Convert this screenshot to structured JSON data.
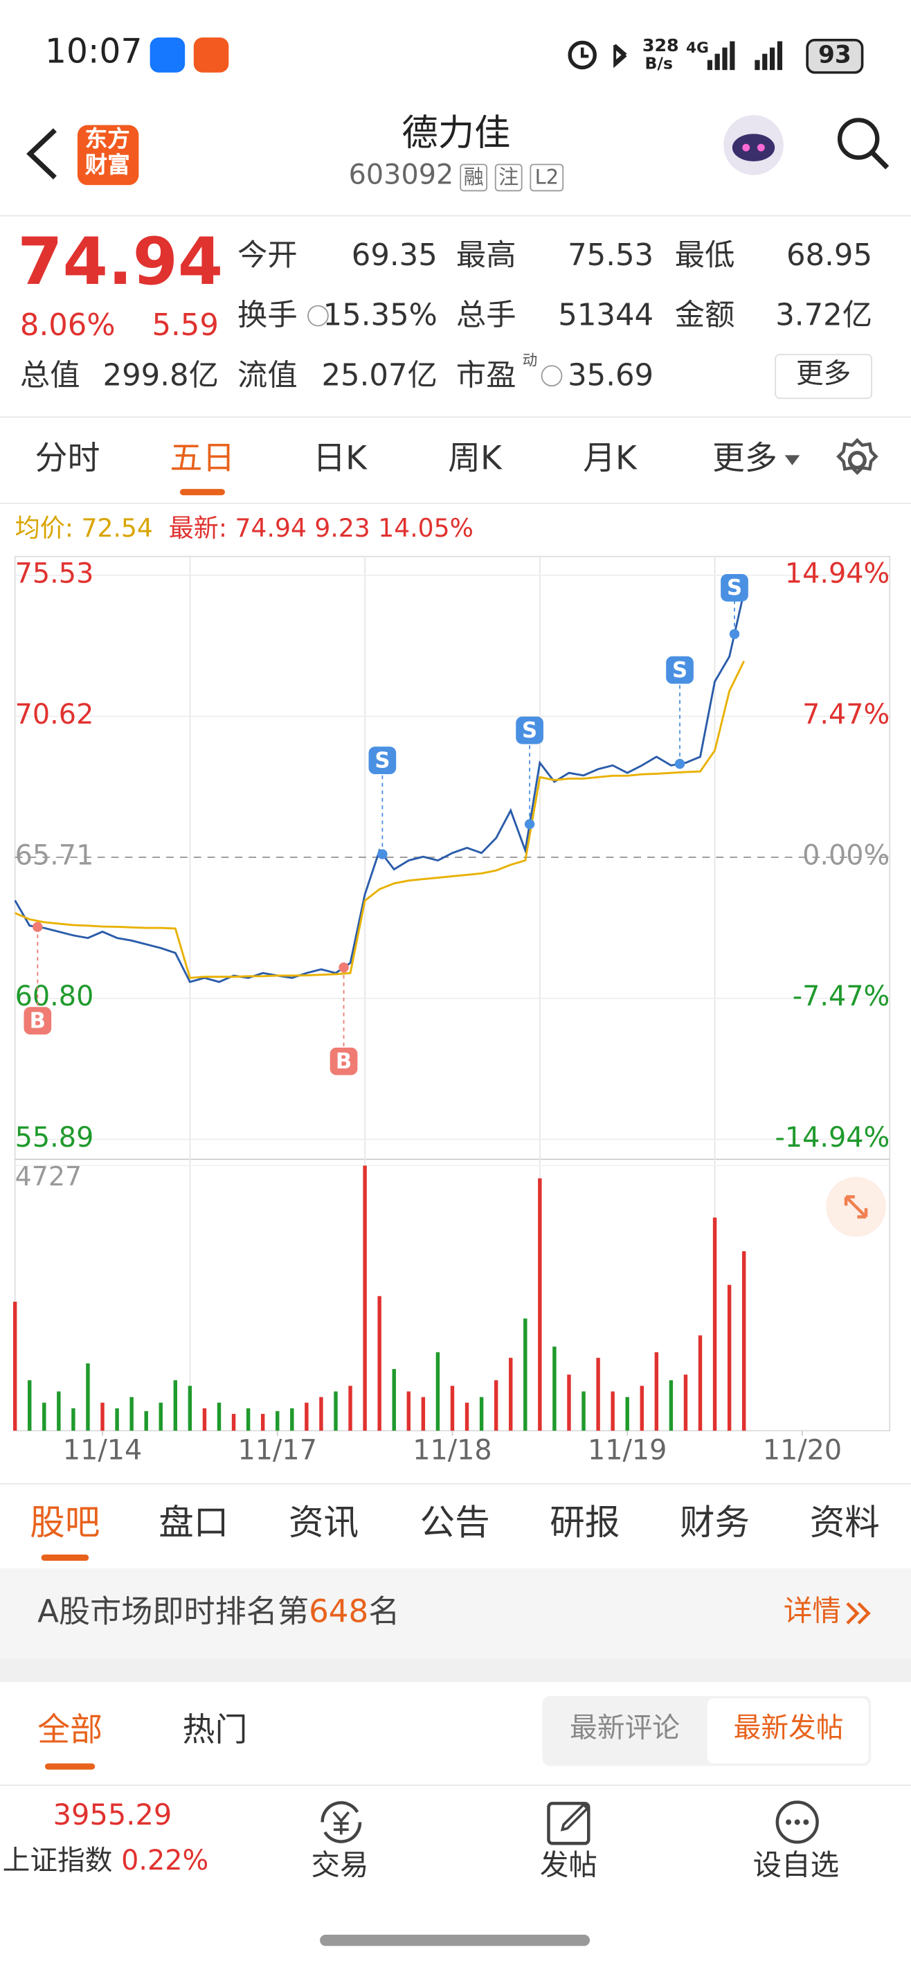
{
  "status_bar": {
    "time": "10:07",
    "net_speed": "328",
    "net_unit": "B/s",
    "network": "4G",
    "battery": "93"
  },
  "header": {
    "logo": [
      "东方",
      "财富"
    ],
    "title": "德力佳",
    "code": "603092",
    "tags": [
      "融",
      "注",
      "L2"
    ]
  },
  "quote": {
    "price": "74.94",
    "change_pct": "8.06%",
    "change": "5.59",
    "stats": [
      {
        "label": "今开",
        "value": "69.35"
      },
      {
        "label": "最高",
        "value": "75.53"
      },
      {
        "label": "最低",
        "value": "68.95"
      },
      {
        "label": "换手",
        "value": "15.35%"
      },
      {
        "label": "总手",
        "value": "51344"
      },
      {
        "label": "金额",
        "value": "3.72亿"
      },
      {
        "label": "总值",
        "value": "299.8亿"
      },
      {
        "label": "流值",
        "value": "25.07亿"
      },
      {
        "label": "市盈",
        "sup": "动",
        "value": "35.69"
      }
    ],
    "more": "更多"
  },
  "period_tabs": {
    "items": [
      "分时",
      "五日",
      "日K",
      "周K",
      "月K",
      "更多"
    ],
    "active": 1
  },
  "chart_data": {
    "type": "line",
    "info": [
      "均价: 72.54",
      "最新: 74.94 9.23 14.05%"
    ],
    "x": [
      0,
      20,
      40,
      60,
      80,
      100,
      120,
      140,
      160,
      180,
      200,
      220,
      240,
      260,
      280,
      300,
      320,
      340,
      360,
      380,
      400,
      420,
      440,
      460,
      480,
      500,
      520,
      540,
      560,
      580,
      600,
      620,
      640,
      660,
      680,
      700,
      720,
      740,
      760,
      780,
      800,
      820,
      840,
      860,
      880,
      900,
      920,
      940,
      960,
      980,
      1000
    ],
    "xlim": [
      0,
      1200
    ],
    "xticks": [
      {
        "value": 120,
        "label": "11/14"
      },
      {
        "value": 360,
        "label": "11/17"
      },
      {
        "value": 600,
        "label": "11/18"
      },
      {
        "value": 840,
        "label": "11/19"
      },
      {
        "value": 1080,
        "label": "11/20"
      }
    ],
    "ylim": [
      55.89,
      75.53
    ],
    "yticks": [
      75.53,
      70.62,
      65.71,
      {
        "value": 60.8,
        "label": "60.80"
      },
      55.89
    ],
    "y2lim": [
      -14.94,
      14.94
    ],
    "y2ticks": [
      {
        "value": 14.94,
        "label": "14.94%"
      },
      {
        "value": 7.47,
        "label": "7.47%"
      },
      {
        "value": 0,
        "label": "0.00%"
      },
      {
        "value": -7.47,
        "label": "-7.47%"
      },
      {
        "value": -14.94,
        "label": "-14.94%"
      }
    ],
    "series": [
      {
        "color": "#2a5caa",
        "values": [
          64.21,
          63.33,
          63.25,
          63.12,
          62.99,
          62.9,
          63.12,
          62.9,
          62.81,
          62.68,
          62.55,
          62.38,
          61.37,
          61.51,
          61.37,
          61.59,
          61.51,
          61.68,
          61.59,
          61.51,
          61.68,
          61.81,
          61.68,
          62.03,
          64.42,
          65.95,
          65.29,
          65.6,
          65.73,
          65.6,
          65.86,
          66.04,
          65.86,
          66.38,
          67.34,
          65.95,
          69.0,
          68.34,
          68.65,
          68.56,
          68.78,
          68.91,
          68.65,
          68.91,
          69.21,
          68.91,
          69.0,
          69.21,
          71.83,
          72.7,
          74.94
        ]
      },
      {
        "color": "#e8b100",
        "values": [
          63.77,
          63.55,
          63.45,
          63.4,
          63.35,
          63.33,
          63.3,
          63.29,
          63.27,
          63.25,
          63.25,
          63.23,
          61.51,
          61.55,
          61.55,
          61.55,
          61.57,
          61.57,
          61.59,
          61.59,
          61.6,
          61.62,
          61.64,
          61.68,
          64.2,
          64.6,
          64.8,
          64.9,
          64.95,
          65.0,
          65.05,
          65.1,
          65.15,
          65.25,
          65.45,
          65.6,
          68.5,
          68.4,
          68.45,
          68.45,
          68.5,
          68.55,
          68.55,
          68.6,
          68.62,
          68.65,
          68.68,
          68.7,
          69.43,
          71.5,
          72.54
        ]
      }
    ],
    "volume": {
      "ylim": [
        0,
        4727
      ],
      "yticks": [
        4727
      ],
      "up_color": "#e0322f",
      "down_color": "#1f9a2c",
      "values": [
        2300,
        900,
        500,
        700,
        400,
        1200,
        500,
        400,
        600,
        350,
        500,
        900,
        800,
        400,
        500,
        300,
        400,
        300,
        350,
        400,
        500,
        600,
        700,
        800,
        4727,
        2400,
        1100,
        700,
        600,
        1400,
        800,
        500,
        600,
        900,
        1300,
        2000,
        4500,
        1500,
        1000,
        700,
        1300,
        700,
        600,
        800,
        1400,
        900,
        1000,
        1700,
        3800,
        2600,
        3200
      ]
    },
    "trades": [
      {
        "x": 31,
        "label": "B"
      },
      {
        "x": 451,
        "label": "B"
      },
      {
        "x": 504,
        "label": "S"
      },
      {
        "x": 706,
        "label": "S"
      },
      {
        "x": 912,
        "label": "S"
      },
      {
        "x": 987,
        "label": "S"
      }
    ]
  },
  "section_tabs": {
    "items": [
      "股吧",
      "盘口",
      "资讯",
      "公告",
      "研报",
      "财务",
      "资料"
    ],
    "active": 0
  },
  "ranking": {
    "prefix": "A股市场即时排名第",
    "rank": "648",
    "suffix": "名",
    "link": "详情"
  },
  "feed_tabs": {
    "items": [
      "全部",
      "热门"
    ],
    "active": 0,
    "sort": [
      "最新评论",
      "最新发帖"
    ],
    "sort_active": 1
  },
  "bottom_bar": {
    "index_value": "3955.29",
    "index_name": "上证指数",
    "index_change": "0.22%",
    "actions": [
      "交易",
      "发帖",
      "设自选"
    ]
  }
}
